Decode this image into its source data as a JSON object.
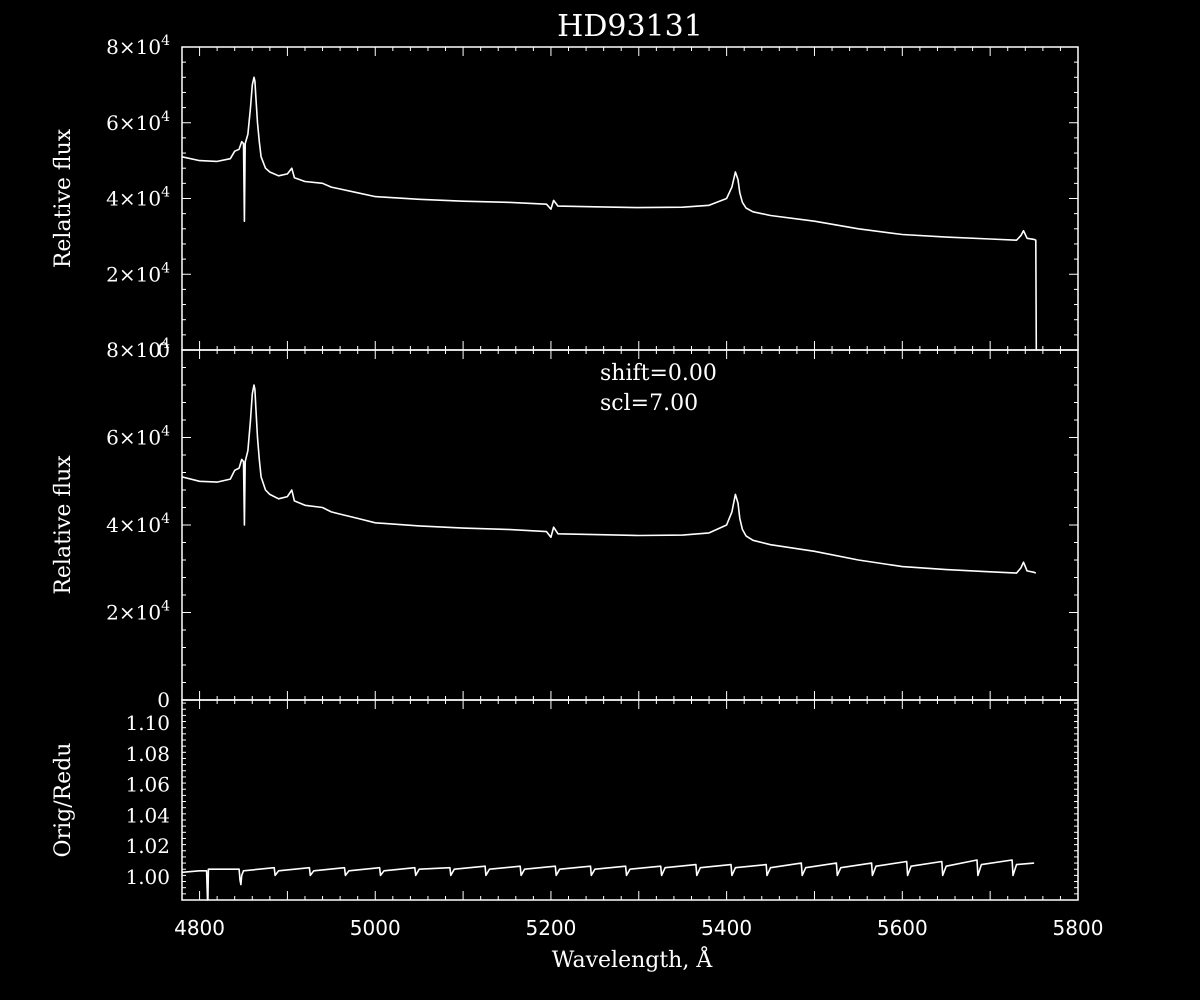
{
  "chart_data": [
    {
      "type": "line",
      "title": "HD93131",
      "xlabel": "",
      "ylabel": "Relative flux",
      "xlim": [
        4780,
        5800
      ],
      "ylim": [
        0,
        80000
      ],
      "ytick_labels": [
        {
          "base": "0",
          "exp": ""
        },
        {
          "base": "2×10",
          "exp": "4"
        },
        {
          "base": "4×10",
          "exp": "4"
        },
        {
          "base": "6×10",
          "exp": "4"
        },
        {
          "base": "8×10",
          "exp": "4"
        }
      ],
      "ytick_values": [
        0,
        20000,
        40000,
        60000,
        80000
      ],
      "series": [
        {
          "x": [
            4780,
            4800,
            4820,
            4835,
            4840,
            4845,
            4848,
            4850,
            4851,
            4852,
            4855,
            4858,
            4860,
            4862,
            4863,
            4864,
            4866,
            4868,
            4870,
            4875,
            4880,
            4890,
            4900,
            4905,
            4908,
            4920,
            4940,
            4950,
            4960,
            4980,
            5000,
            5050,
            5100,
            5150,
            5195,
            5200,
            5203,
            5208,
            5250,
            5300,
            5350,
            5380,
            5400,
            5406,
            5410,
            5413,
            5415,
            5418,
            5422,
            5430,
            5450,
            5500,
            5550,
            5600,
            5650,
            5700,
            5730,
            5735,
            5738,
            5742,
            5750,
            5752,
            5752.5,
            5753
          ],
          "y": [
            51000,
            50000,
            49800,
            50500,
            52500,
            53000,
            55000,
            54500,
            34000,
            54500,
            57000,
            64000,
            70000,
            72000,
            71000,
            67000,
            60000,
            55000,
            51000,
            48000,
            47000,
            46000,
            46500,
            48000,
            45500,
            44500,
            44000,
            43000,
            42500,
            41500,
            40500,
            39800,
            39300,
            39000,
            38500,
            37200,
            39500,
            38000,
            37800,
            37600,
            37700,
            38200,
            40000,
            43000,
            47000,
            45000,
            41500,
            39000,
            37500,
            36500,
            35500,
            34000,
            32000,
            30500,
            29800,
            29300,
            29000,
            30200,
            31500,
            29500,
            29200,
            29000,
            0,
            0
          ]
        }
      ]
    },
    {
      "type": "line",
      "xlabel": "",
      "ylabel": "Relative flux",
      "xlim": [
        4780,
        5800
      ],
      "ylim": [
        0,
        80000
      ],
      "annotations": [
        "shift=0.00",
        "scl=7.00"
      ],
      "ytick_labels": [
        {
          "base": "0",
          "exp": ""
        },
        {
          "base": "2×10",
          "exp": "4"
        },
        {
          "base": "4×10",
          "exp": "4"
        },
        {
          "base": "6×10",
          "exp": "4"
        },
        {
          "base": "8×10",
          "exp": "4"
        }
      ],
      "ytick_values": [
        0,
        20000,
        40000,
        60000,
        80000
      ],
      "series": [
        {
          "x": [
            4780,
            4800,
            4820,
            4835,
            4840,
            4845,
            4848,
            4850,
            4851,
            4852,
            4855,
            4858,
            4860,
            4862,
            4863,
            4864,
            4866,
            4868,
            4870,
            4875,
            4880,
            4890,
            4900,
            4905,
            4908,
            4920,
            4940,
            4950,
            4960,
            4980,
            5000,
            5050,
            5100,
            5150,
            5195,
            5200,
            5203,
            5208,
            5250,
            5300,
            5350,
            5380,
            5400,
            5406,
            5410,
            5413,
            5415,
            5418,
            5422,
            5430,
            5450,
            5500,
            5550,
            5600,
            5650,
            5700,
            5730,
            5735,
            5738,
            5742,
            5750,
            5752
          ],
          "y": [
            51000,
            50000,
            49800,
            50500,
            52500,
            53000,
            55000,
            54500,
            40000,
            54500,
            57000,
            64000,
            70000,
            72000,
            71000,
            67000,
            60000,
            55000,
            51000,
            48000,
            47000,
            46000,
            46500,
            48000,
            45500,
            44500,
            44000,
            43000,
            42500,
            41500,
            40500,
            39800,
            39300,
            39000,
            38500,
            37200,
            39500,
            38000,
            37800,
            37600,
            37700,
            38200,
            40000,
            43000,
            47000,
            45000,
            41500,
            39000,
            37500,
            36500,
            35500,
            34000,
            32000,
            30500,
            29800,
            29300,
            29000,
            30200,
            31500,
            29500,
            29200,
            29000
          ]
        }
      ]
    },
    {
      "type": "line",
      "xlabel": "Wavelength, Å",
      "ylabel": "Orig/Redu",
      "xlim": [
        4780,
        5800
      ],
      "ylim": [
        0.985,
        1.115
      ],
      "ytick_labels": [
        "1.00",
        "1.02",
        "1.04",
        "1.06",
        "1.08",
        "1.10"
      ],
      "ytick_values": [
        1.0,
        1.02,
        1.04,
        1.06,
        1.08,
        1.1
      ],
      "xtick_labels": [
        "4800",
        "5000",
        "5200",
        "5400",
        "5600",
        "5800"
      ],
      "xtick_values": [
        4800,
        5000,
        5200,
        5400,
        5600,
        5800
      ],
      "series": [
        {
          "x": [
            4780,
            4800,
            4801,
            4803,
            4806,
            4807,
            4808,
            4809,
            4809.5,
            4810,
            4845,
            4846,
            4847,
            4848,
            4850,
            4885,
            4886,
            4890,
            4925,
            4926,
            4930,
            4965,
            4966,
            4970,
            5005,
            5006,
            5010,
            5045,
            5046,
            5050,
            5085,
            5086,
            5090,
            5125,
            5126,
            5130,
            5165,
            5166,
            5170,
            5205,
            5206,
            5210,
            5245,
            5246,
            5250,
            5285,
            5286,
            5290,
            5325,
            5326,
            5330,
            5365,
            5366,
            5370,
            5405,
            5406,
            5410,
            5445,
            5446,
            5450,
            5485,
            5486,
            5490,
            5525,
            5526,
            5530,
            5565,
            5566,
            5570,
            5605,
            5606,
            5610,
            5645,
            5646,
            5650,
            5685,
            5686,
            5690,
            5725,
            5726,
            5730,
            5750
          ],
          "y": [
            1.003,
            1.004,
            1.004,
            1.004,
            1.004,
            1.004,
            1.004,
            0.985,
            0.985,
            1.005,
            1.005,
            0.998,
            0.995,
            1.001,
            1.004,
            1.006,
            1.001,
            1.004,
            1.006,
            1.001,
            1.004,
            1.006,
            1.001,
            1.004,
            1.006,
            1.001,
            1.004,
            1.006,
            1.001,
            1.005,
            1.006,
            1.001,
            1.005,
            1.007,
            1.001,
            1.005,
            1.007,
            1.001,
            1.005,
            1.007,
            1.001,
            1.005,
            1.007,
            1.001,
            1.005,
            1.007,
            1.001,
            1.005,
            1.007,
            1.001,
            1.006,
            1.008,
            1.001,
            1.006,
            1.008,
            1.001,
            1.006,
            1.008,
            1.001,
            1.006,
            1.009,
            1.001,
            1.006,
            1.009,
            1.001,
            1.006,
            1.009,
            1.001,
            1.007,
            1.01,
            1.001,
            1.007,
            1.01,
            1.001,
            1.007,
            1.011,
            1.001,
            1.008,
            1.011,
            1.001,
            1.008,
            1.009
          ]
        }
      ]
    }
  ]
}
